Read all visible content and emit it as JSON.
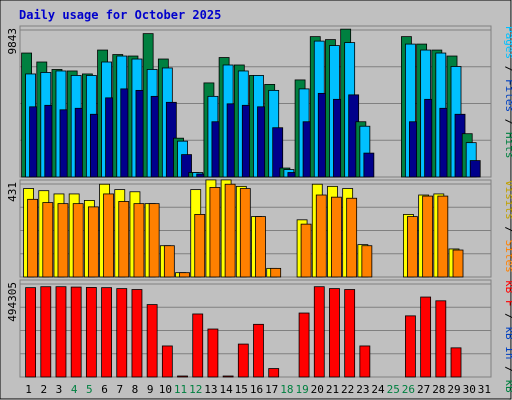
{
  "chart_data": {
    "type": "bar",
    "title": "Daily usage for October 2025",
    "colors": {
      "background": "#c0c0c0",
      "frame": "#ffffff",
      "hits": "#008040",
      "files": "#00c0ff",
      "pages": "#00008b",
      "visits": "#ffff00",
      "sites": "#ff8000",
      "kbytes": "#ff0000",
      "weekend_label": "#008040",
      "weekday_label": "#000000"
    },
    "days": [
      "1",
      "2",
      "3",
      "4",
      "5",
      "6",
      "7",
      "8",
      "9",
      "10",
      "11",
      "12",
      "13",
      "14",
      "15",
      "16",
      "17",
      "18",
      "19",
      "20",
      "21",
      "22",
      "23",
      "24",
      "25",
      "26",
      "27",
      "28",
      "29",
      "30",
      "31"
    ],
    "weekend_days": [
      4,
      5,
      11,
      12,
      18,
      19,
      25,
      26
    ],
    "panels": [
      {
        "name": "requests",
        "max_label": "9843",
        "ymax": 9843,
        "legend": [
          {
            "text": "Pages",
            "color": "#00c0ff"
          },
          {
            "text": " / ",
            "color": "#000000"
          },
          {
            "text": "Files",
            "color": "#0040c0"
          },
          {
            "text": " / ",
            "color": "#000000"
          },
          {
            "text": "Hits",
            "color": "#008040"
          }
        ],
        "series": [
          {
            "name": "Hits",
            "color": "#008040",
            "values": [
              8300,
              7700,
              7200,
              7100,
              6900,
              8500,
              8200,
              8100,
              9600,
              7900,
              2600,
              300,
              6300,
              8000,
              7500,
              6800,
              6200,
              600,
              6500,
              9400,
              9200,
              9900,
              3700,
              0,
              0,
              9400,
              8900,
              8500,
              8100,
              2900,
              0
            ]
          },
          {
            "name": "Files",
            "color": "#00c0ff",
            "values": [
              6900,
              7000,
              7100,
              6800,
              6800,
              7700,
              8100,
              7900,
              7200,
              7300,
              2400,
              300,
              5400,
              7500,
              7100,
              6800,
              5800,
              500,
              5900,
              9100,
              8800,
              9000,
              3400,
              0,
              0,
              8900,
              8500,
              8300,
              7400,
              2300,
              0
            ]
          },
          {
            "name": "Pages",
            "color": "#00008b",
            "values": [
              4700,
              4800,
              4500,
              4600,
              4200,
              5300,
              5900,
              5800,
              5400,
              5000,
              1500,
              200,
              3700,
              4900,
              4800,
              4700,
              3300,
              300,
              3700,
              5600,
              5200,
              5500,
              1600,
              0,
              0,
              3700,
              5200,
              4600,
              4200,
              1100,
              0
            ]
          }
        ]
      },
      {
        "name": "visits",
        "max_label": "431",
        "ymax": 431,
        "legend": [
          {
            "text": "Visits",
            "color": "#c0a000"
          },
          {
            "text": " / ",
            "color": "#000000"
          },
          {
            "text": "Sites",
            "color": "#ff8000"
          }
        ],
        "series": [
          {
            "name": "Visits",
            "color": "#ffff00",
            "values": [
              410,
              400,
              385,
              385,
              355,
              430,
              405,
              395,
              340,
              145,
              20,
              405,
              450,
              450,
              420,
              280,
              40,
              0,
              265,
              430,
              420,
              410,
              150,
              0,
              0,
              290,
              380,
              385,
              130,
              0,
              0
            ]
          },
          {
            "name": "Sites",
            "color": "#ff8000",
            "values": [
              360,
              345,
              340,
              340,
              325,
              385,
              350,
              340,
              340,
              145,
              20,
              290,
              415,
              430,
              410,
              280,
              40,
              0,
              245,
              380,
              370,
              365,
              145,
              0,
              0,
              280,
              375,
              375,
              125,
              0,
              0
            ]
          }
        ]
      },
      {
        "name": "kbytes",
        "max_label": "494305",
        "ymax": 494305,
        "legend": [
          {
            "text": "kB F",
            "color": "#ff0000"
          },
          {
            "text": " / ",
            "color": "#000000"
          },
          {
            "text": "kB In",
            "color": "#0040c0"
          },
          {
            "text": " / ",
            "color": "#000000"
          },
          {
            "text": "kB Out",
            "color": "#008040"
          }
        ],
        "series": [
          {
            "name": "kB F",
            "color": "#ff0000",
            "values": [
              475000,
              480000,
              480000,
              478000,
              476000,
              475000,
              470000,
              465000,
              385000,
              165000,
              5000,
              335000,
              255000,
              5000,
              175000,
              280000,
              45000,
              0,
              340000,
              480000,
              470000,
              465000,
              165000,
              0,
              0,
              325000,
              425000,
              405000,
              155000,
              0,
              0
            ]
          }
        ]
      }
    ]
  }
}
